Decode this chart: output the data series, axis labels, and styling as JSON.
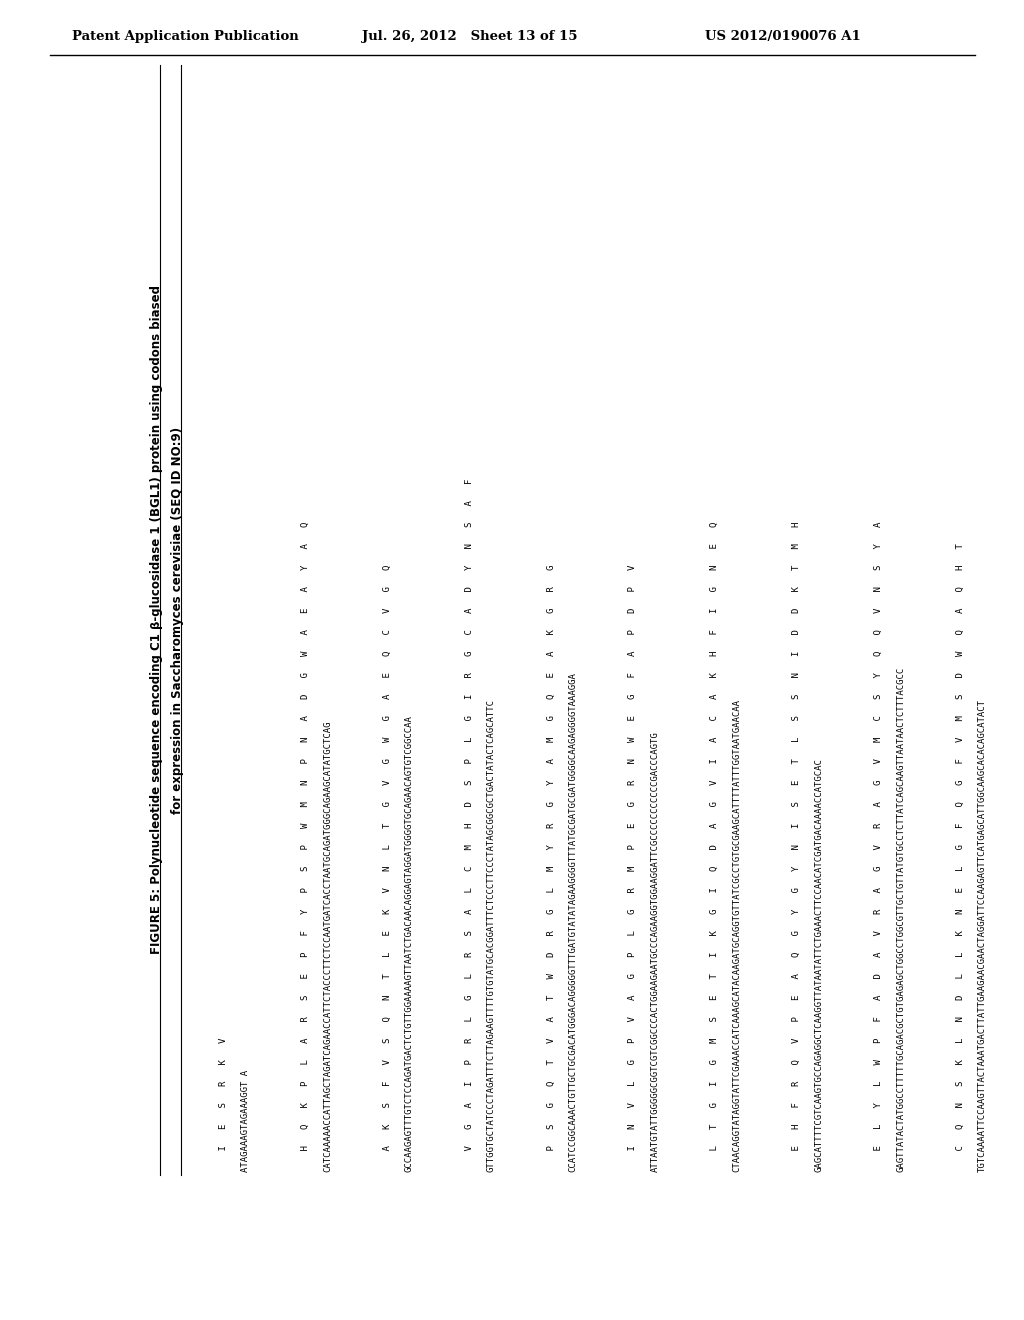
{
  "header_left": "Patent Application Publication",
  "header_mid": "Jul. 26, 2012   Sheet 13 of 15",
  "header_right": "US 2012/0190076 A1",
  "fig_title_bold": "FIGURE 5: Polynucleotide sequence encoding C1 β-glucosidase 1 (BGL1) protein using codons biased",
  "fig_title_line2_normal": "for expression in ",
  "fig_title_line2_italic": "Saccharomyces cerevisiae",
  "fig_title_line2_end": " (SEQ ID NO:9)",
  "seq_blocks": [
    {
      "dna": "ATAGAAAGTAGAAAGGT A",
      "aa": "    I   E   S   R   K   V"
    },
    {
      "dna": "CATCAAAAACCATTAGCTAGATCAGAACCATTCTACCCTTCTCCAATGATCACCTAATGCAGATGGGCAGAAGCATATGCTCAG",
      "aa": "    H   Q   K   P   L   A   R   S   E   P   F   Y   P   S   P   W   M   N   P   N   A   D   G   W   A   E   A   Y   A   Q"
    },
    {
      "dna": "GCCAAGAGTTTGTCTCCAGATGACTCTGTTGGAAAAGTTAATCTGACAACAGGAGTAGGATGGGGTGCAGAACAGTGTCGGCCAA",
      "aa": "    A   K   S   F   V   S   Q   N   T   L   E   K   V   N   L   T   G   V   G   W   G   A   E   Q   C   V   G   Q"
    },
    {
      "dna": "GTTGGTGCTATCCCTAGATTTCTTAGAAGTTTTGTGTATGCACGGATTTCTCCCTTCCCTATAGCGGCGCTGACTATACTCAGCATTC",
      "aa": "    V   G   A   I   P   R   L   G   L   R   S   A   L   C   M   H   D   S   P   L   G   I   R   G   C   A   D   Y   N   S   A   F"
    },
    {
      "dna": "CCATCCGGCAAACTGTTGCTGCGACATGGGACAGGGGGTTTGATGTATATAGAAGGGGTTTATGCGATGCGATGGGGCAAGAGGGGTAAAGGA",
      "aa": "    P   S   G   Q   T   V   A   T   W   D   R   G   L   M   Y   R   G   Y   A   M   G   Q   E   A   K   G   R   G"
    },
    {
      "dna": "ATTAATGTATTGGGGGCGGTCGTCGGCCCACTGGAAGAATGCCCAGAAGGTGGAAGGATTCGCCCCCCCCCCCGACCCAGTG",
      "aa": "    I   N   V   L   G   P   V   A   G   P   L   G   R   M   P   E   G   R   N   W   E   G   F   A   P   D   P   V"
    },
    {
      "dna": "CTAACAGGTATAGGTATTCGAAACCATCAAAGCATACAAGATGCAGGTGTTATCGCCTGTGCGAAGCATTTTATTTGGTAATGAACAA",
      "aa": "    L   T   G   I   G   M   S   E   T   I   K   G   I   Q   D   A   G   V   I   A   C   A   K   H   F   I   G   N   E   Q"
    },
    {
      "dna": "GAGCATTTTCGTCAAGTGCCAGAGGCTCAAGGTTATAATATTCTGAAACTTCCAACATCGATGACAAAACCATGCAC",
      "aa": "    E   H   F   R   Q   V   P   E   A   Q   G   Y   G   Y   N   I   S   E   T   L   S   S   N   I   D   D   K   T   M   H"
    },
    {
      "dna": "GAGTTATACTATGGCCTTTTTGCAGACGCTGTGAGAGCTGGCCTGGCGTTGCTGTTATGTGCCTCTTATCAGCAAGTTAATAACTCTTTACGCC",
      "aa": "    E   L   Y   L   W   P   F   A   D   A   V   R   A   G   V   R   A   G   V   M   C   S   Y   Q   Q   V   N   S   Y   A"
    },
    {
      "dna": "TGTCAAAATTCCAAGTTACTAAATGACTTATTGAAGAACGAACTAGGATTCCAAGAGTTCATGAGCATTGGCAAGCACACAGCATACT",
      "aa": "    C   Q   N   S   K   L   N   D   L   L   K   N   E   L   G   F   Q   G   F   V   M   S   D   W   Q   A   Q   H   T"
    }
  ],
  "background_color": "#ffffff",
  "text_color": "#000000"
}
